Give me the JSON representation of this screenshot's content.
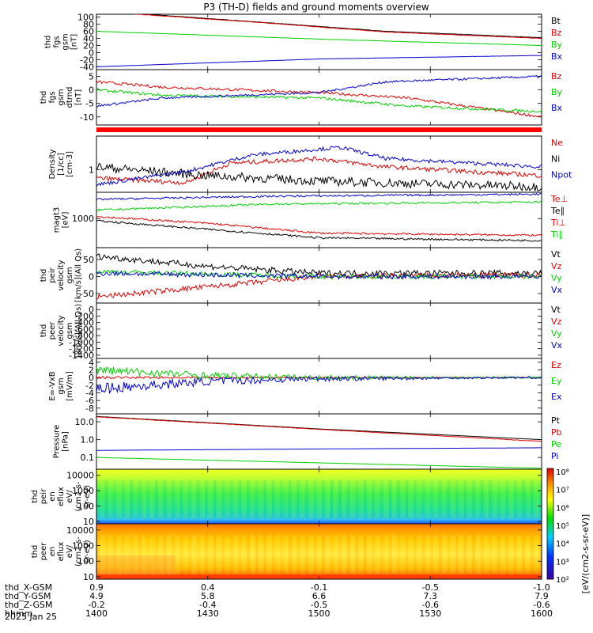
{
  "title": "P3 (TH-D) fields and ground moments overview",
  "colors": {
    "black": "#000000",
    "red": "#e00000",
    "green": "#00d000",
    "blue": "#0000d0",
    "orange_bar": "#ff0000"
  },
  "time_axis": {
    "ticks": [
      "1400",
      "1430",
      "1500",
      "1530",
      "1600"
    ],
    "range": [
      1400,
      1600
    ],
    "rows": [
      {
        "label": "thd_X-GSM",
        "values": [
          "0.9",
          "0.4",
          "-0.1",
          "-0.5",
          "-1.0"
        ]
      },
      {
        "label": "thd_Y-GSM",
        "values": [
          "4.9",
          "5.8",
          "6.6",
          "7.3",
          "7.9"
        ]
      },
      {
        "label": "thd_Z-GSM",
        "values": [
          "-0.2",
          "-0.4",
          "-0.5",
          "-0.6",
          "-0.6"
        ]
      },
      {
        "label": "hhmm",
        "values": [
          "1400",
          "1430",
          "1500",
          "1530",
          "1600"
        ]
      }
    ],
    "date": "2025 Jan 25"
  },
  "panels": [
    {
      "ylabel": [
        "thd",
        "fgs",
        "gsm",
        "[nT]"
      ],
      "yticks": [
        "100",
        "80",
        "60",
        "40",
        "20",
        "0",
        "-20",
        "-40"
      ],
      "legend": [
        {
          "t": "Bt",
          "c": "black"
        },
        {
          "t": "Bz",
          "c": "red"
        },
        {
          "t": "By",
          "c": "green"
        },
        {
          "t": "Bx",
          "c": "blue"
        }
      ]
    },
    {
      "ylabel": [
        "thd",
        "fgs",
        "gsm",
        "dtrnd",
        "[nT]"
      ],
      "yticks": [
        "5",
        "0",
        "-5",
        "-10"
      ],
      "legend": [
        {
          "t": "Bz",
          "c": "red"
        },
        {
          "t": "By",
          "c": "green"
        },
        {
          "t": "Bx",
          "c": "blue"
        }
      ]
    },
    {
      "ylabel": [
        "Density",
        "[1/cc]",
        "[cm-3]"
      ],
      "yticks": [
        "1"
      ],
      "legend": [
        {
          "t": "Ne",
          "c": "red"
        },
        {
          "t": "Ni",
          "c": "black"
        },
        {
          "t": "Npot",
          "c": "blue"
        }
      ]
    },
    {
      "ylabel": [
        "magt3",
        "[eV]"
      ],
      "yticks": [
        "1000"
      ],
      "legend": [
        {
          "t": "Te⊥",
          "c": "red"
        },
        {
          "t": "Te∥",
          "c": "black"
        },
        {
          "t": "Ti⊥",
          "c": "red"
        },
        {
          "t": "Ti∥",
          "c": "green"
        }
      ]
    },
    {
      "ylabel": [
        "thd",
        "peir",
        "velocity",
        "gsm",
        "[km/s](All Qs)"
      ],
      "yticks": [
        "50",
        "0",
        "-50"
      ],
      "legend": [
        {
          "t": "Vt",
          "c": "black"
        },
        {
          "t": "Vz",
          "c": "red"
        },
        {
          "t": "Vy",
          "c": "green"
        },
        {
          "t": "Vx",
          "c": "blue"
        }
      ]
    },
    {
      "ylabel": [
        "thd",
        "peer",
        "velocity",
        "gsm",
        "[km/s](All Qs)"
      ],
      "yticks": [
        "0",
        "-200",
        "-400",
        "-600",
        "-800",
        "-1000",
        "-1200",
        "-1400"
      ],
      "legend": [
        {
          "t": "Vt",
          "c": "black"
        },
        {
          "t": "Vz",
          "c": "red"
        },
        {
          "t": "Vy",
          "c": "green"
        },
        {
          "t": "Vx",
          "c": "blue"
        }
      ]
    },
    {
      "ylabel": [
        "E=-VxB",
        "gsm",
        "[mV/m]"
      ],
      "yticks": [
        "4",
        "2",
        "0",
        "-2",
        "-4",
        "-6",
        "-8"
      ],
      "legend": [
        {
          "t": "Ez",
          "c": "red"
        },
        {
          "t": "Ey",
          "c": "green"
        },
        {
          "t": "Ex",
          "c": "blue"
        }
      ]
    },
    {
      "ylabel": [
        "Pressure",
        "[nPa]"
      ],
      "yticks": [
        "10.0",
        "1.0",
        "0.1"
      ],
      "legend": [
        {
          "t": "Pt",
          "c": "black"
        },
        {
          "t": "Pb",
          "c": "red"
        },
        {
          "t": "Pe",
          "c": "green"
        },
        {
          "t": "Pi",
          "c": "blue"
        }
      ]
    },
    {
      "ylabel": [
        "thd",
        "peir",
        "en",
        "eflux",
        "eV/",
        "(cm2-s-",
        "sr-eV)"
      ],
      "yticks": [
        "10000",
        "1000",
        "100",
        "10"
      ],
      "legend": []
    },
    {
      "ylabel": [
        "thd",
        "peer",
        "en",
        "eflux",
        "eV/",
        "(cm2-s-",
        "sr-eV)"
      ],
      "yticks": [
        "10000",
        "1000",
        "100",
        "10"
      ],
      "legend": []
    }
  ],
  "colorbar": {
    "label": "[eV/(cm2-s-sr-eV)]",
    "ticks": [
      "10⁸",
      "10⁷",
      "10⁶",
      "10⁵",
      "10⁴",
      "10³",
      "10²"
    ]
  },
  "chart_data": [
    {
      "type": "line",
      "title": "P3 (TH-D) fields and ground moments overview",
      "series": [
        {
          "name": "Bt",
          "x": [
            1400,
            1475,
            1530,
            1600
          ],
          "values": [
            118,
            85,
            60,
            42
          ]
        },
        {
          "name": "Bz",
          "x": [
            1400,
            1475,
            1530,
            1600
          ],
          "values": [
            116,
            84,
            58,
            40
          ]
        },
        {
          "name": "By",
          "x": [
            1400,
            1500,
            1600
          ],
          "values": [
            60,
            38,
            20
          ]
        },
        {
          "name": "Bx",
          "x": [
            1400,
            1500,
            1600
          ],
          "values": [
            -40,
            -18,
            -8
          ]
        }
      ],
      "ylim": [
        -40,
        100
      ]
    },
    {
      "type": "line",
      "series": [
        {
          "name": "Bz",
          "x": [
            1400,
            1430,
            1500,
            1540,
            1600
          ],
          "values": [
            3,
            1,
            -1,
            -3,
            -10
          ]
        },
        {
          "name": "By",
          "x": [
            1400,
            1430,
            1500,
            1540,
            1600
          ],
          "values": [
            0,
            -2,
            -3,
            -6,
            -8
          ]
        },
        {
          "name": "Bx",
          "x": [
            1400,
            1430,
            1500,
            1530,
            1600
          ],
          "values": [
            -6,
            -3,
            -1,
            3,
            5
          ]
        }
      ],
      "ylim": [
        -12,
        7
      ]
    },
    {
      "type": "line",
      "series": [
        {
          "name": "Ne",
          "x": [
            1400,
            1440,
            1460,
            1500,
            1530,
            1600
          ],
          "values": [
            0.6,
            0.45,
            1.5,
            2.0,
            1.2,
            0.7
          ]
        },
        {
          "name": "Ni",
          "x": [
            1400,
            1450,
            1500,
            1600
          ],
          "values": [
            1.2,
            0.7,
            0.5,
            0.35
          ]
        },
        {
          "name": "Npot",
          "x": [
            1400,
            1440,
            1470,
            1510,
            1530,
            1600
          ],
          "values": [
            0.4,
            0.9,
            2.5,
            4.0,
            2.0,
            1.2
          ]
        }
      ]
    },
    {
      "type": "line",
      "series": [
        {
          "name": "Te⊥",
          "x": [
            1400,
            1480,
            1600
          ],
          "values": [
            2500,
            2900,
            3200
          ]
        },
        {
          "name": "Te∥",
          "x": [
            1400,
            1450,
            1500,
            1600
          ],
          "values": [
            900,
            600,
            400,
            350
          ]
        },
        {
          "name": "Ti⊥",
          "x": [
            1400,
            1450,
            1500,
            1600
          ],
          "values": [
            1100,
            800,
            500,
            450
          ]
        },
        {
          "name": "Ti∥",
          "x": [
            1400,
            1480,
            1600
          ],
          "values": [
            1500,
            2000,
            2200
          ]
        }
      ]
    },
    {
      "type": "line",
      "series": [
        {
          "name": "Vt",
          "x": [
            1400,
            1450,
            1500,
            1600
          ],
          "values": [
            60,
            30,
            10,
            10
          ]
        },
        {
          "name": "Vz",
          "x": [
            1400,
            1450,
            1500,
            1600
          ],
          "values": [
            -60,
            -30,
            0,
            5
          ]
        },
        {
          "name": "Vy",
          "x": [
            1400,
            1500,
            1600
          ],
          "values": [
            15,
            0,
            0
          ]
        },
        {
          "name": "Vx",
          "x": [
            1400,
            1500,
            1600
          ],
          "values": [
            10,
            0,
            0
          ]
        }
      ],
      "ylim": [
        -80,
        80
      ]
    },
    {
      "type": "line",
      "series": [],
      "ylim": [
        -1500,
        200
      ]
    },
    {
      "type": "line",
      "series": [
        {
          "name": "Ez",
          "x": [
            1400,
            1450,
            1500,
            1600
          ],
          "values": [
            0,
            0,
            0,
            0
          ]
        },
        {
          "name": "Ey",
          "x": [
            1400,
            1450,
            1500,
            1600
          ],
          "values": [
            2,
            0.5,
            0,
            0
          ]
        },
        {
          "name": "Ex",
          "x": [
            1400,
            1450,
            1500,
            1600
          ],
          "values": [
            -3,
            -1,
            -0.3,
            0
          ]
        }
      ],
      "ylim": [
        -9,
        5
      ]
    },
    {
      "type": "line",
      "series": [
        {
          "name": "Pt",
          "x": [
            1400,
            1500,
            1600
          ],
          "values": [
            20,
            4,
            1
          ]
        },
        {
          "name": "Pb",
          "x": [
            1400,
            1500,
            1600
          ],
          "values": [
            19,
            3.8,
            0.8
          ]
        },
        {
          "name": "Pe",
          "x": [
            1400,
            1500,
            1600
          ],
          "values": [
            0.1,
            0.05,
            0.025
          ]
        },
        {
          "name": "Pi",
          "x": [
            1400,
            1500,
            1600
          ],
          "values": [
            0.25,
            0.3,
            0.35
          ]
        }
      ]
    },
    {
      "type": "heatmap",
      "ylim": [
        5,
        25000
      ]
    },
    {
      "type": "heatmap",
      "ylim": [
        5,
        25000
      ]
    }
  ]
}
